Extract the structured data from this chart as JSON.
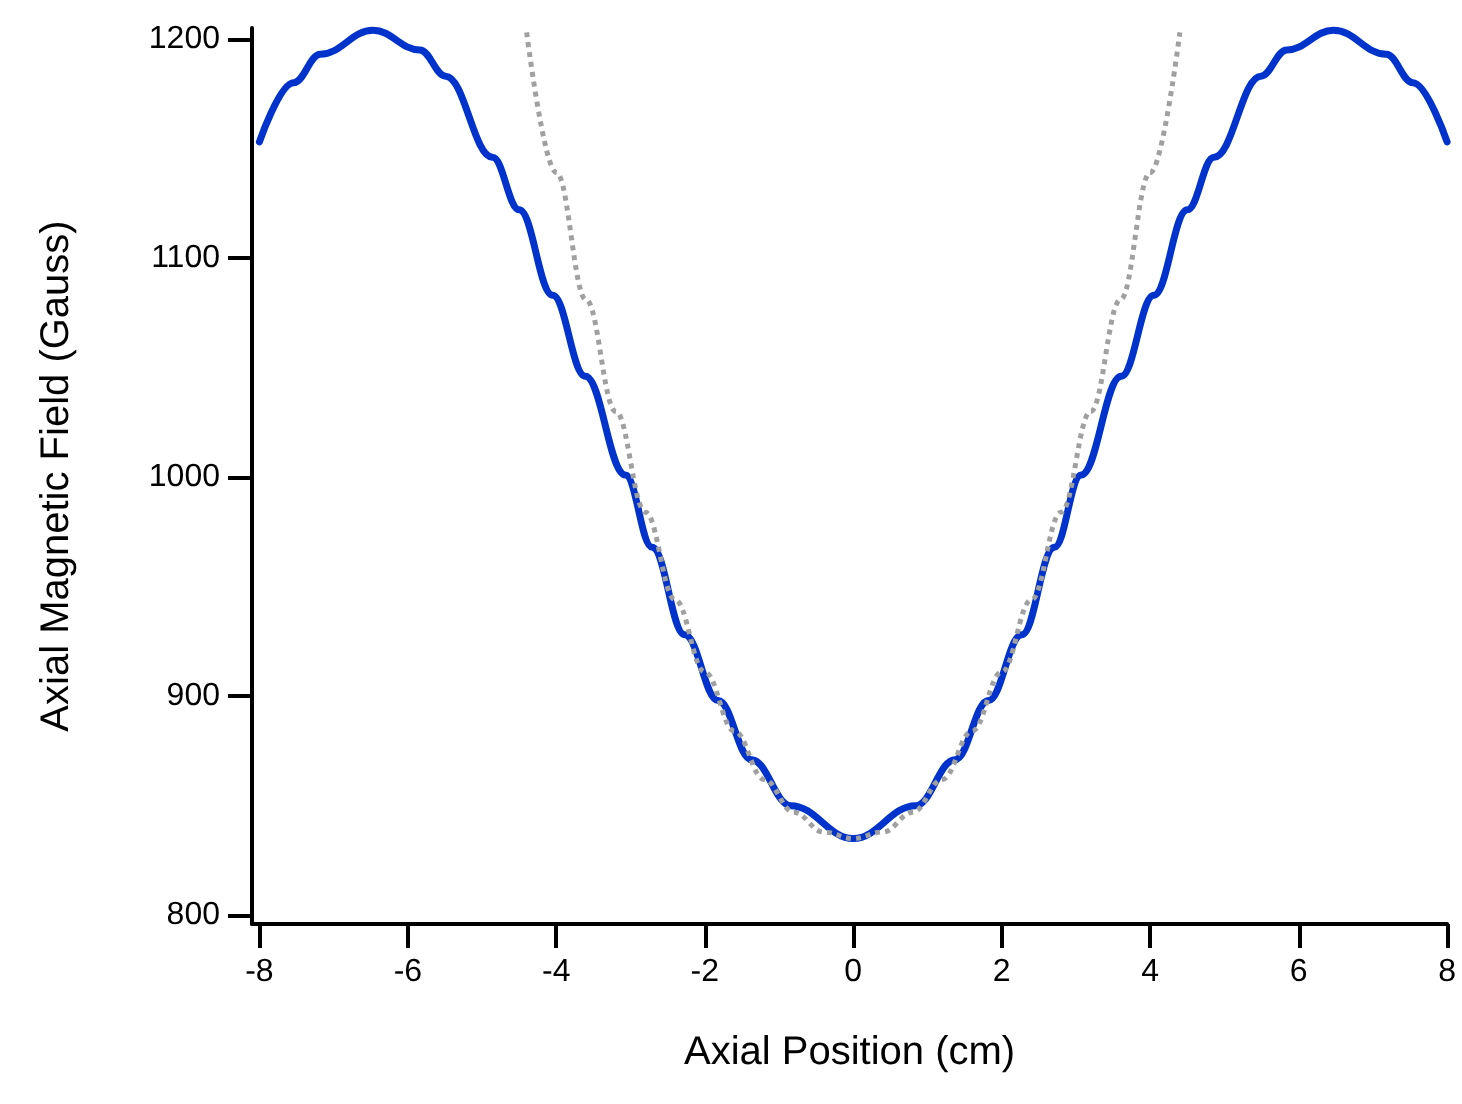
{
  "chart_data": {
    "type": "line",
    "xlabel": "Axial Position (cm)",
    "ylabel": "Axial Magnetic Field (Gauss)",
    "xlim": [
      -8.1,
      8
    ],
    "xticks": [
      -8,
      -6,
      -4,
      -2,
      0,
      2,
      4,
      6,
      8
    ],
    "ylim": [
      796,
      1205
    ],
    "yticks": [
      800,
      900,
      1000,
      1100,
      1200
    ],
    "grid": false,
    "marker": "none",
    "series": [
      {
        "color": "#0033cc",
        "line_style": "solid",
        "x": [
          -8,
          -7.54,
          -7.18,
          -6.47,
          -5.84,
          -5.49,
          -4.86,
          -4.5,
          -4.05,
          -3.61,
          -3.07,
          -2.71,
          -2.27,
          -1.82,
          -1.37,
          -0.84,
          0,
          0.84,
          1.37,
          1.82,
          2.27,
          2.71,
          3.07,
          3.61,
          4.05,
          4.5,
          4.86,
          5.49,
          5.84,
          6.47,
          7.18,
          7.54,
          8
        ],
        "values": [
          1153,
          1180,
          1193,
          1204,
          1195,
          1183,
          1146,
          1122,
          1083,
          1046,
          1001,
          968,
          928,
          898,
          871,
          850,
          835,
          850,
          871,
          898,
          928,
          968,
          1001,
          1046,
          1083,
          1122,
          1146,
          1183,
          1195,
          1204,
          1193,
          1180,
          1153
        ]
      },
      {
        "color": "#a0a0a0",
        "line_style": "dotted",
        "x": [
          -4.4,
          -4,
          -3.6,
          -3.2,
          -2.8,
          -2.4,
          -2,
          -1.6,
          -1.2,
          -0.8,
          -0.4,
          0,
          0.4,
          0.8,
          1.2,
          1.6,
          2,
          2.4,
          2.8,
          3.2,
          3.6,
          4,
          4.4
        ],
        "values": [
          1203,
          1139,
          1081,
          1030,
          984,
          944,
          911,
          884,
          862,
          847,
          838,
          835,
          838,
          847,
          862,
          884,
          911,
          944,
          984,
          1030,
          1081,
          1139,
          1203
        ]
      }
    ]
  }
}
